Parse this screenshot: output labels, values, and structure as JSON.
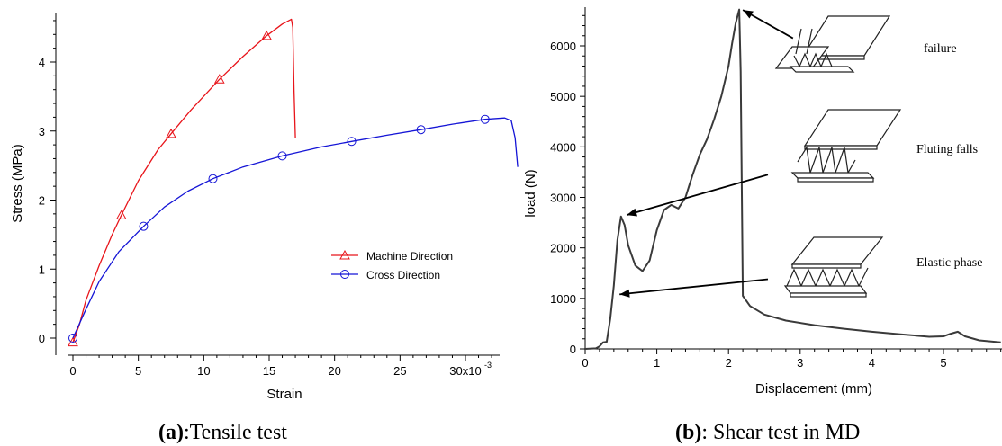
{
  "chart_data": [
    {
      "type": "line",
      "xlabel": "Strain",
      "ylabel": "Stress (MPa)",
      "xlim": [
        -0.0005,
        0.034
      ],
      "ylim": [
        -0.1,
        4.65
      ],
      "x_ticks": [
        0,
        0.005,
        0.01,
        0.015,
        0.02,
        0.025,
        0.03
      ],
      "x_tick_labels": [
        "0",
        "5",
        "10",
        "15",
        "20",
        "25",
        "30x10"
      ],
      "x_tick_exponent": "-3",
      "y_ticks": [
        0,
        1,
        2,
        3,
        4
      ],
      "y_tick_labels": [
        "0",
        "1",
        "2",
        "3",
        "4"
      ],
      "legend_position": "bottom-right",
      "caption_bold": "(a)",
      "caption_rest": ":Tensile test",
      "series": [
        {
          "name": "Machine Direction",
          "color": "#e8141a",
          "marker": "triangle",
          "x": [
            0,
            0.0005,
            0.001,
            0.002,
            0.003,
            0.0037,
            0.005,
            0.0065,
            0.0075,
            0.009,
            0.0112,
            0.013,
            0.0148,
            0.016,
            0.0166,
            0.0167,
            0.0168,
            0.0169,
            0.017
          ],
          "y": [
            -0.06,
            0.2,
            0.55,
            1.05,
            1.5,
            1.78,
            2.28,
            2.73,
            2.96,
            3.3,
            3.75,
            4.08,
            4.38,
            4.55,
            4.61,
            4.62,
            4.5,
            3.6,
            2.9
          ],
          "markers_x": [
            0,
            0.0037,
            0.0075,
            0.0112,
            0.0148
          ],
          "markers_y": [
            -0.06,
            1.78,
            2.96,
            3.75,
            4.38
          ]
        },
        {
          "name": "Cross Direction",
          "color": "#1515d6",
          "marker": "circle",
          "x": [
            0,
            0.001,
            0.002,
            0.0035,
            0.0054,
            0.007,
            0.0088,
            0.0107,
            0.013,
            0.016,
            0.019,
            0.0213,
            0.024,
            0.0266,
            0.029,
            0.0315,
            0.033,
            0.0335,
            0.0338,
            0.034
          ],
          "y": [
            0,
            0.42,
            0.82,
            1.25,
            1.62,
            1.9,
            2.13,
            2.31,
            2.48,
            2.64,
            2.77,
            2.85,
            2.94,
            3.02,
            3.1,
            3.17,
            3.19,
            3.15,
            2.9,
            2.48
          ],
          "markers_x": [
            0,
            0.0054,
            0.0107,
            0.016,
            0.0213,
            0.0266,
            0.0315
          ],
          "markers_y": [
            0,
            1.62,
            2.31,
            2.64,
            2.85,
            3.02,
            3.17
          ]
        }
      ]
    },
    {
      "type": "line",
      "xlabel": "Displacement (mm)",
      "ylabel": "load (N)",
      "xlim": [
        0,
        5.8
      ],
      "ylim": [
        0,
        6750
      ],
      "x_ticks": [
        0,
        1,
        2,
        3,
        4,
        5
      ],
      "y_ticks": [
        0,
        1000,
        2000,
        3000,
        4000,
        5000,
        6000
      ],
      "caption_bold": "(b)",
      "caption_rest": ": Shear test in MD",
      "series": [
        {
          "color": "#3a3a3a",
          "x": [
            0,
            0.15,
            0.2,
            0.25,
            0.3,
            0.35,
            0.4,
            0.45,
            0.5,
            0.55,
            0.6,
            0.7,
            0.8,
            0.9,
            1.0,
            1.1,
            1.2,
            1.3,
            1.4,
            1.5,
            1.6,
            1.7,
            1.8,
            1.9,
            2.0,
            2.05,
            2.1,
            2.15,
            2.17,
            2.2,
            2.3,
            2.5,
            2.8,
            3.2,
            3.6,
            4.0,
            4.4,
            4.8,
            5.0,
            5.1,
            5.2,
            5.3,
            5.5,
            5.8
          ],
          "y": [
            0,
            10,
            50,
            130,
            140,
            600,
            1250,
            2150,
            2620,
            2450,
            2050,
            1650,
            1540,
            1750,
            2350,
            2750,
            2850,
            2780,
            3000,
            3450,
            3850,
            4150,
            4550,
            5000,
            5600,
            6050,
            6450,
            6720,
            5500,
            1050,
            850,
            680,
            560,
            470,
            400,
            340,
            290,
            240,
            250,
            300,
            340,
            250,
            170,
            130
          ]
        }
      ],
      "annotations": [
        {
          "label": "failure",
          "arrow_tip": [
            2.2,
            6710
          ],
          "arrow_tail": [
            2.9,
            6150
          ]
        },
        {
          "label": "Fluting falls",
          "arrow_tip": [
            0.58,
            2650
          ],
          "arrow_tail": [
            2.55,
            3450
          ]
        },
        {
          "label": "Elastic phase",
          "arrow_tip": [
            0.48,
            1080
          ],
          "arrow_tail": [
            2.55,
            1380
          ]
        }
      ]
    }
  ]
}
